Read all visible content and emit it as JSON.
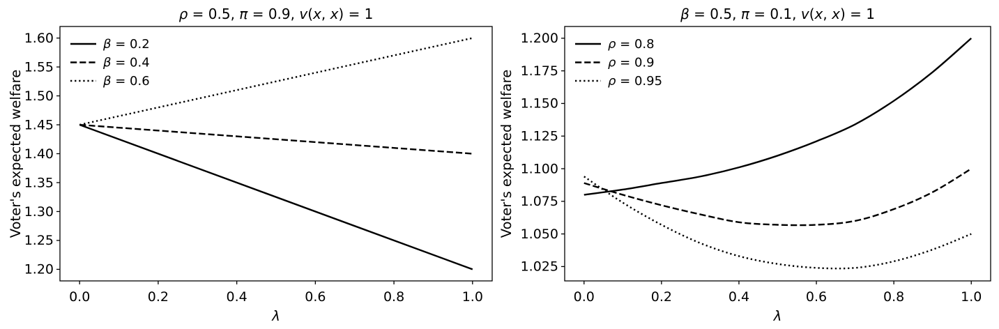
{
  "figure": {
    "background": "#ffffff",
    "text_color": "#000000",
    "line_color": "#000000"
  },
  "chart_data": [
    {
      "type": "line",
      "title": "ρ = 0.5, π = 0.9, v(x, x) = 1",
      "xlabel": "λ",
      "ylabel": "Voter's expected welfare",
      "xlim": [
        -0.05,
        1.05
      ],
      "ylim": [
        1.18,
        1.62
      ],
      "grid": false,
      "legend_position": "upper-left",
      "xticks": {
        "values": [
          0.0,
          0.2,
          0.4,
          0.6,
          0.8,
          1.0
        ],
        "labels": [
          "0.0",
          "0.2",
          "0.4",
          "0.6",
          "0.8",
          "1.0"
        ]
      },
      "yticks": {
        "values": [
          1.2,
          1.25,
          1.3,
          1.35,
          1.4,
          1.45,
          1.5,
          1.55,
          1.6
        ],
        "labels": [
          "1.20",
          "1.25",
          "1.30",
          "1.35",
          "1.40",
          "1.45",
          "1.50",
          "1.55",
          "1.60"
        ]
      },
      "series": [
        {
          "name": "β = 0.2",
          "style": "solid",
          "x": [
            0.0,
            1.0
          ],
          "y": [
            1.45,
            1.2
          ]
        },
        {
          "name": "β = 0.4",
          "style": "dashed",
          "x": [
            0.0,
            1.0
          ],
          "y": [
            1.45,
            1.4
          ]
        },
        {
          "name": "β = 0.6",
          "style": "dotted",
          "x": [
            0.0,
            1.0
          ],
          "y": [
            1.45,
            1.6
          ]
        }
      ]
    },
    {
      "type": "line",
      "title": "β = 0.5, π = 0.1, v(x, x) = 1",
      "xlabel": "λ",
      "ylabel": "Voter's expected welfare",
      "xlim": [
        -0.05,
        1.05
      ],
      "ylim": [
        1.014,
        1.209
      ],
      "grid": false,
      "legend_position": "upper-left",
      "xticks": {
        "values": [
          0.0,
          0.2,
          0.4,
          0.6,
          0.8,
          1.0
        ],
        "labels": [
          "0.0",
          "0.2",
          "0.4",
          "0.6",
          "0.8",
          "1.0"
        ]
      },
      "yticks": {
        "values": [
          1.025,
          1.05,
          1.075,
          1.1,
          1.125,
          1.15,
          1.175,
          1.2
        ],
        "labels": [
          "1.025",
          "1.050",
          "1.075",
          "1.100",
          "1.125",
          "1.150",
          "1.175",
          "1.200"
        ]
      },
      "series": [
        {
          "name": "ρ = 0.8",
          "style": "solid",
          "x": [
            0.0,
            0.1,
            0.2,
            0.3,
            0.4,
            0.5,
            0.6,
            0.7,
            0.8,
            0.9,
            1.0
          ],
          "y": [
            1.08,
            1.084,
            1.089,
            1.094,
            1.101,
            1.11,
            1.121,
            1.134,
            1.152,
            1.174,
            1.2
          ]
        },
        {
          "name": "ρ = 0.9",
          "style": "dashed",
          "x": [
            0.0,
            0.1,
            0.2,
            0.3,
            0.4,
            0.5,
            0.6,
            0.7,
            0.8,
            0.9,
            1.0
          ],
          "y": [
            1.089,
            1.08,
            1.072,
            1.065,
            1.059,
            1.057,
            1.057,
            1.06,
            1.069,
            1.082,
            1.1
          ]
        },
        {
          "name": "ρ = 0.95",
          "style": "dotted",
          "x": [
            0.0,
            0.1,
            0.2,
            0.3,
            0.4,
            0.5,
            0.6,
            0.7,
            0.8,
            0.9,
            1.0
          ],
          "y": [
            1.094,
            1.074,
            1.057,
            1.043,
            1.033,
            1.027,
            1.024,
            1.024,
            1.029,
            1.038,
            1.05
          ]
        }
      ]
    }
  ]
}
